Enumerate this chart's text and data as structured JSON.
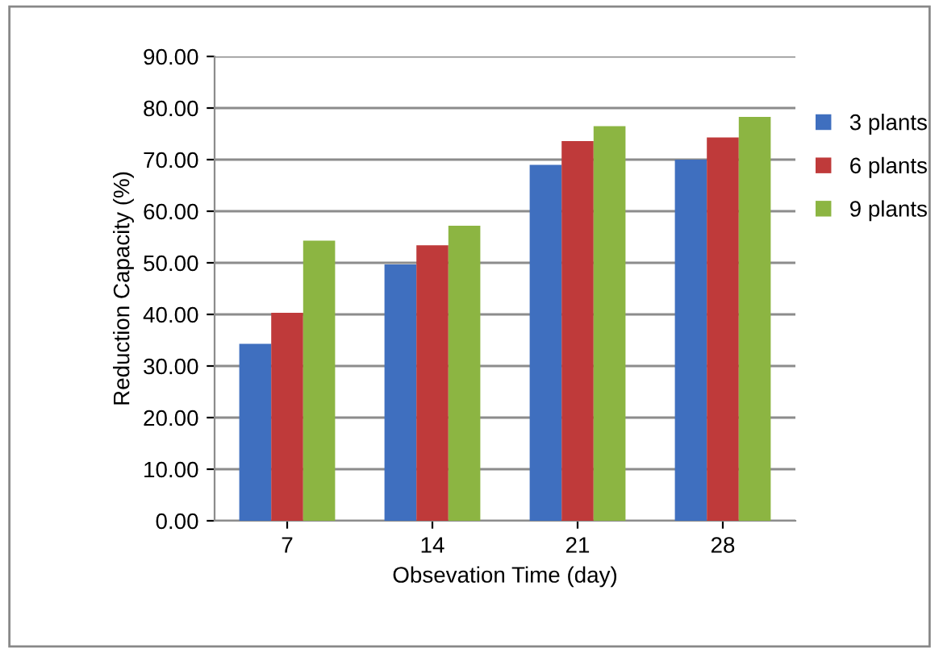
{
  "chart_data": {
    "type": "bar",
    "xlabel": "Obsevation Time (day)",
    "ylabel": "Reduction Capacity (%)",
    "categories": [
      "7",
      "14",
      "21",
      "28"
    ],
    "series": [
      {
        "name": "3 plants",
        "color": "#3f6fbf",
        "values": [
          34.3,
          49.7,
          69.0,
          70.0
        ]
      },
      {
        "name": "6 plants",
        "color": "#bf3a3a",
        "values": [
          40.3,
          53.4,
          73.6,
          74.3
        ]
      },
      {
        "name": "9 plants",
        "color": "#8cb542",
        "values": [
          54.3,
          57.2,
          76.5,
          78.3
        ]
      }
    ],
    "ylim": [
      0,
      90
    ],
    "yticks": [
      {
        "value": 0,
        "label": "0.00"
      },
      {
        "value": 10,
        "label": "10.00"
      },
      {
        "value": 20,
        "label": "20.00"
      },
      {
        "value": 30,
        "label": "30.00"
      },
      {
        "value": 40,
        "label": "40.00"
      },
      {
        "value": 50,
        "label": "50.00"
      },
      {
        "value": 60,
        "label": "60.00"
      },
      {
        "value": 70,
        "label": "70.00"
      },
      {
        "value": 80,
        "label": "80.00"
      },
      {
        "value": 90,
        "label": "90.00"
      }
    ],
    "grid": "y",
    "legend": "top right"
  }
}
